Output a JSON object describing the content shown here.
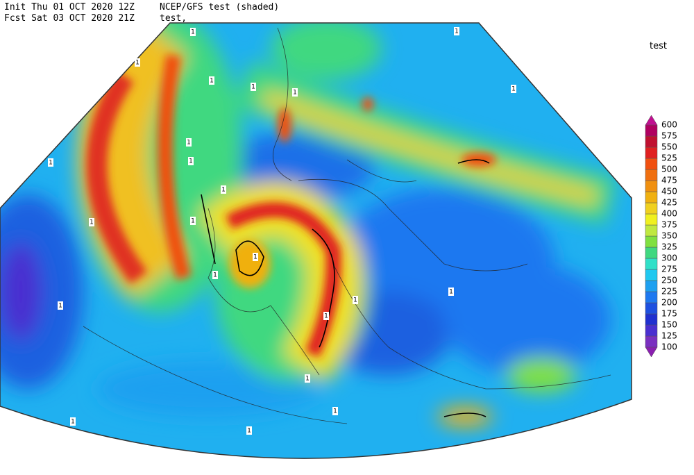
{
  "header": {
    "init": "Init  Thu 01 OCT 2020 12Z",
    "fcst": "Fcst Sat 03 OCT 2020 21Z",
    "title": "NCEP/GFS test (shaded)",
    "subtitle": "test,"
  },
  "legend": {
    "title": "test",
    "levels": [
      100,
      125,
      150,
      175,
      200,
      225,
      250,
      275,
      300,
      325,
      350,
      375,
      400,
      425,
      450,
      475,
      500,
      525,
      550,
      575,
      600
    ],
    "colors": [
      "#8a1fb0",
      "#7a2fc0",
      "#4a2fd0",
      "#2030d0",
      "#1e50e0",
      "#1e78f0",
      "#1ea0f0",
      "#20c8f0",
      "#30e0c8",
      "#40d880",
      "#80e040",
      "#c0e840",
      "#f0f020",
      "#f0d020",
      "#f0b010",
      "#f09010",
      "#f07010",
      "#f05010",
      "#e02020",
      "#c01030",
      "#b00060",
      "#c01090"
    ]
  },
  "contour_labels": [
    "1",
    "1",
    "1",
    "1",
    "1",
    "1",
    "1",
    "1",
    "1",
    "1",
    "1",
    "1",
    "1",
    "1",
    "1",
    "1",
    "1",
    "1",
    "1",
    "1",
    "1",
    "1",
    "1"
  ]
}
